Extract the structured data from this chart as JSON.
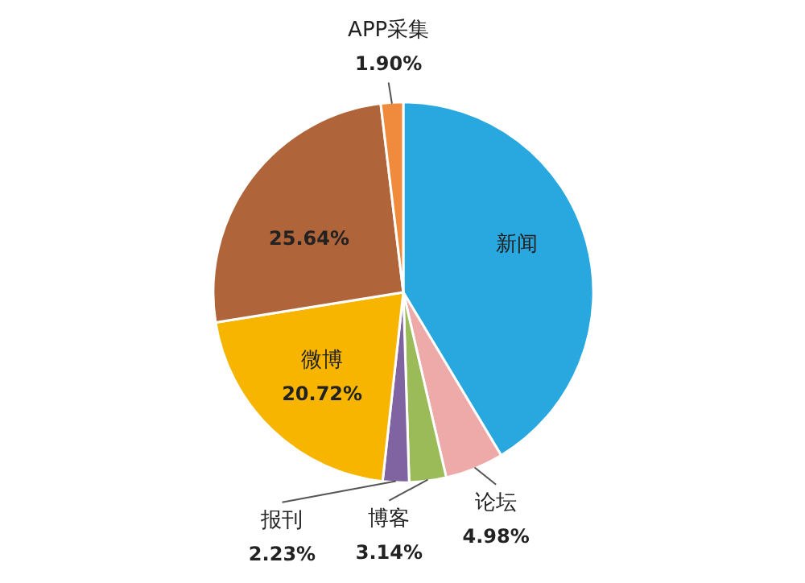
{
  "chart_data": {
    "type": "pie",
    "categories": [
      "新闻",
      "论坛",
      "博客",
      "报刊",
      "微博",
      null,
      "APP采集"
    ],
    "values": [
      41.39,
      4.98,
      3.14,
      2.23,
      20.72,
      25.64,
      1.9
    ],
    "colors": [
      "#29a8df",
      "#eea9a9",
      "#9bbb59",
      "#8064a2",
      "#f7b500",
      "#b0643a",
      "#f08a3c"
    ],
    "value_labels": [
      null,
      "4.98%",
      "3.14%",
      "2.23%",
      "20.72%",
      "25.64%",
      "1.90%"
    ]
  }
}
